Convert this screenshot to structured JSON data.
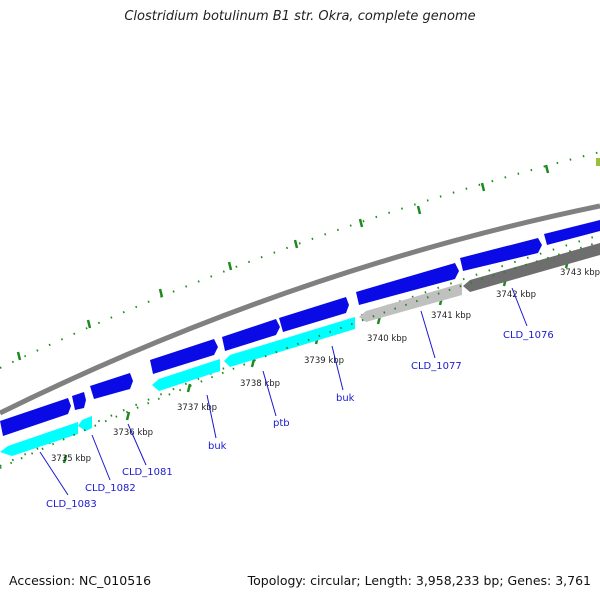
{
  "title": "Clostridium botulinum B1 str. Okra, complete genome",
  "footer": {
    "accession": "Accession: NC_010516",
    "topology": "Topology: circular; Length: 3,958,233 bp; Genes: 3,761"
  },
  "ticks": [
    "3735 kbp",
    "3736 kbp",
    "3737 kbp",
    "3738 kbp",
    "3739 kbp",
    "3740 kbp",
    "3741 kbp",
    "3742 kbp",
    "3743 kbp"
  ],
  "gene_labels": [
    "CLD_1083",
    "CLD_1082",
    "CLD_1081",
    "buk",
    "ptb",
    "buk",
    "CLD_1077",
    "CLD_1076"
  ],
  "colors": {
    "backbone": "#808080",
    "forward_gene": "#0a0ae6",
    "reverse_light": "#00ffff",
    "reverse_mid": "#c0c0c0",
    "reverse_dark": "#6e6e6e",
    "tick": "#1e8a1e",
    "label": "#1a1ad0"
  }
}
